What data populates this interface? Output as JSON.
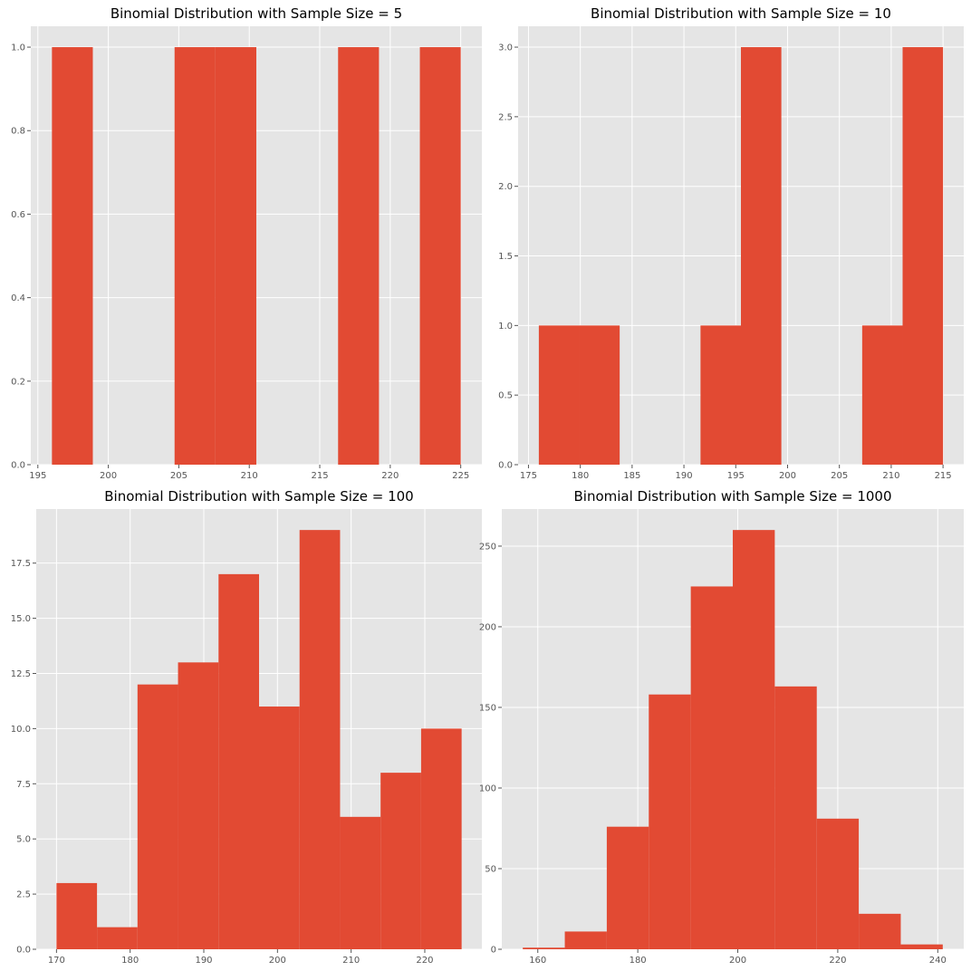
{
  "colors": {
    "bar": "#E24A33",
    "axes_bg": "#E5E5E5",
    "grid": "#FFFFFF",
    "tick_text": "#555555",
    "figure_bg": "#FFFFFF"
  },
  "chart_data": [
    {
      "type": "bar",
      "title": "Binomial Distribution with Sample Size = 5",
      "xlabel": "",
      "ylabel": "",
      "grid": true,
      "bin_edges": [
        196.0,
        198.9,
        201.8,
        204.7,
        207.6,
        210.5,
        213.4,
        216.3,
        219.2,
        222.1,
        225.0
      ],
      "values": [
        1,
        0,
        0,
        1,
        1,
        0,
        0,
        1,
        0,
        1
      ],
      "xlim": [
        194.5,
        226.5
      ],
      "ylim": [
        0,
        1.05
      ],
      "xticks": [
        195,
        200,
        205,
        210,
        215,
        220,
        225
      ],
      "xtick_labels": [
        "195",
        "200",
        "205",
        "210",
        "215",
        "220",
        "225"
      ],
      "yticks": [
        0,
        0.2,
        0.4,
        0.6,
        0.8,
        1.0
      ],
      "ytick_labels": [
        "0.0",
        "0.2",
        "0.4",
        "0.6",
        "0.8",
        "1.0"
      ]
    },
    {
      "type": "bar",
      "title": "Binomial Distribution with Sample Size = 10",
      "xlabel": "",
      "ylabel": "",
      "grid": true,
      "bin_edges": [
        176.0,
        179.9,
        183.8,
        187.7,
        191.6,
        195.5,
        199.4,
        203.3,
        207.2,
        211.1,
        215.0
      ],
      "values": [
        1,
        1,
        0,
        0,
        1,
        3,
        0,
        0,
        1,
        3
      ],
      "xlim": [
        174.0,
        217.0
      ],
      "ylim": [
        0,
        3.15
      ],
      "xticks": [
        175,
        180,
        185,
        190,
        195,
        200,
        205,
        210,
        215
      ],
      "xtick_labels": [
        "175",
        "180",
        "185",
        "190",
        "195",
        "200",
        "205",
        "210",
        "215"
      ],
      "yticks": [
        0,
        0.5,
        1.0,
        1.5,
        2.0,
        2.5,
        3.0
      ],
      "ytick_labels": [
        "0.0",
        "0.5",
        "1.0",
        "1.5",
        "2.0",
        "2.5",
        "3.0"
      ]
    },
    {
      "type": "bar",
      "title": "Binomial Distribution with Sample Size = 100",
      "xlabel": "",
      "ylabel": "",
      "grid": true,
      "bin_edges": [
        170.0,
        175.5,
        181.0,
        186.5,
        192.0,
        197.5,
        203.0,
        208.5,
        214.0,
        219.5,
        225.0
      ],
      "values": [
        3,
        1,
        12,
        13,
        17,
        11,
        19,
        6,
        8,
        10
      ],
      "xlim": [
        167.25,
        227.75
      ],
      "ylim": [
        0,
        19.95
      ],
      "xticks": [
        170,
        180,
        190,
        200,
        210,
        220
      ],
      "xtick_labels": [
        "170",
        "180",
        "190",
        "200",
        "210",
        "220"
      ],
      "yticks": [
        0,
        2.5,
        5.0,
        7.5,
        10.0,
        12.5,
        15.0,
        17.5
      ],
      "ytick_labels": [
        "0.0",
        "2.5",
        "5.0",
        "7.5",
        "10.0",
        "12.5",
        "15.0",
        "17.5"
      ]
    },
    {
      "type": "bar",
      "title": "Binomial Distribution with Sample Size = 1000",
      "xlabel": "",
      "ylabel": "",
      "grid": true,
      "bin_edges": [
        157.0,
        165.4,
        173.8,
        182.2,
        190.6,
        199.0,
        207.4,
        215.8,
        224.2,
        232.6,
        241.0
      ],
      "values": [
        1,
        11,
        76,
        158,
        225,
        260,
        163,
        81,
        22,
        3
      ],
      "xlim": [
        152.8,
        245.2
      ],
      "ylim": [
        0,
        273
      ],
      "xticks": [
        160,
        180,
        200,
        220,
        240
      ],
      "xtick_labels": [
        "160",
        "180",
        "200",
        "220",
        "240"
      ],
      "yticks": [
        0,
        50,
        100,
        150,
        200,
        250
      ],
      "ytick_labels": [
        "0",
        "50",
        "100",
        "150",
        "200",
        "250"
      ]
    }
  ]
}
